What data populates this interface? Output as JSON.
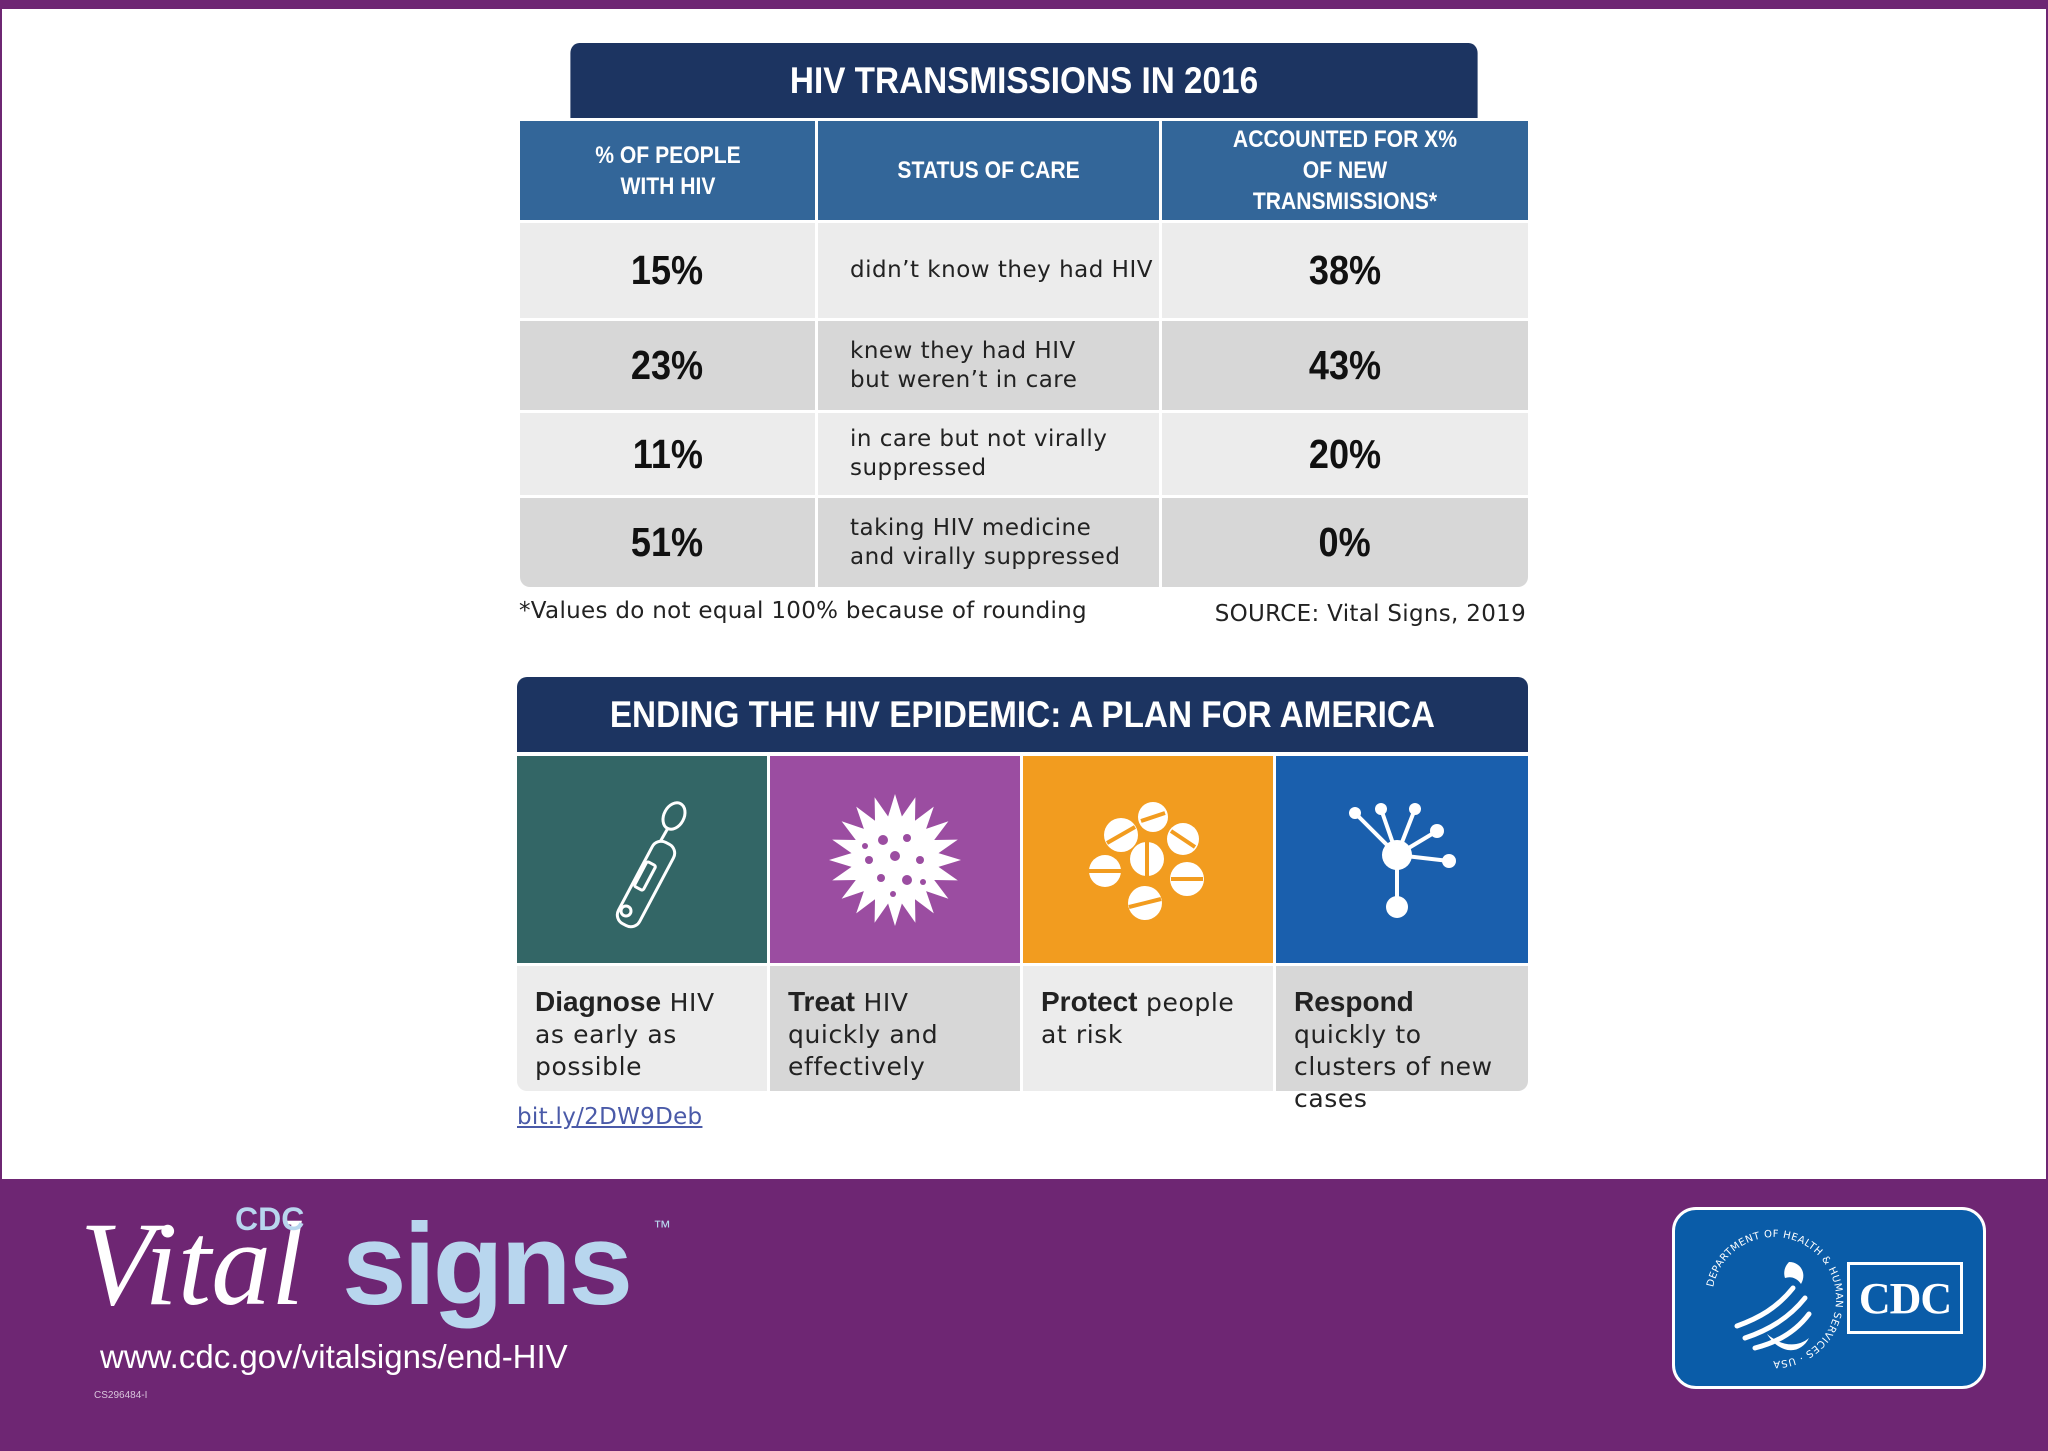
{
  "table": {
    "title": "HIV TRANSMISSIONS IN 2016",
    "headers": [
      "% OF PEOPLE WITH HIV",
      "STATUS OF CARE",
      "ACCOUNTED FOR X% OF NEW TRANSMISSIONS*"
    ],
    "rows": [
      {
        "percent_people": "15%",
        "status": "didn’t know they had HIV",
        "percent_transmissions": "38%"
      },
      {
        "percent_people": "23%",
        "status": "knew they had HIV but weren’t in care",
        "percent_transmissions": "43%"
      },
      {
        "percent_people": "11%",
        "status": "in care but not virally suppressed",
        "percent_transmissions": "20%"
      },
      {
        "percent_people": "51%",
        "status": "taking HIV medicine and virally suppressed",
        "percent_transmissions": "0%"
      }
    ],
    "footnote": "*Values do not equal 100% because of rounding",
    "source": "SOURCE: Vital Signs, 2019"
  },
  "plan": {
    "title": "ENDING THE HIV EPIDEMIC: A PLAN FOR AMERICA",
    "pillars": [
      {
        "keyword": "Diagnose",
        "rest": " HIV as early as possible",
        "icon": "test-stick-icon",
        "color": "#336666"
      },
      {
        "keyword": "Treat",
        "rest": " HIV quickly and effectively",
        "icon": "virus-icon",
        "color": "#9b4da1"
      },
      {
        "keyword": "Protect",
        "rest": " people at risk",
        "icon": "pills-icon",
        "color": "#f29c1f"
      },
      {
        "keyword": "Respond",
        "rest": " quickly to clusters of new cases",
        "icon": "network-cluster-icon",
        "color": "#1a5fad"
      }
    ],
    "link": "bit.ly/2DW9Deb"
  },
  "footer": {
    "logo": {
      "cdc": "CDC",
      "vital": "Vital",
      "signs": "signs",
      "tm": "™"
    },
    "url": "www.cdc.gov/vitalsigns/end-HIV",
    "code": "CS296484-I",
    "badge": {
      "seal_text": "DEPARTMENT OF HEALTH & HUMAN SERVICES · USA",
      "cdc_text": "CDC"
    }
  },
  "colors": {
    "purple": "#6e2673",
    "navy": "#1c3461",
    "header_blue": "#336699",
    "teal": "#336666",
    "violet": "#9b4da1",
    "orange": "#f29c1f",
    "blue": "#1a5fad"
  }
}
